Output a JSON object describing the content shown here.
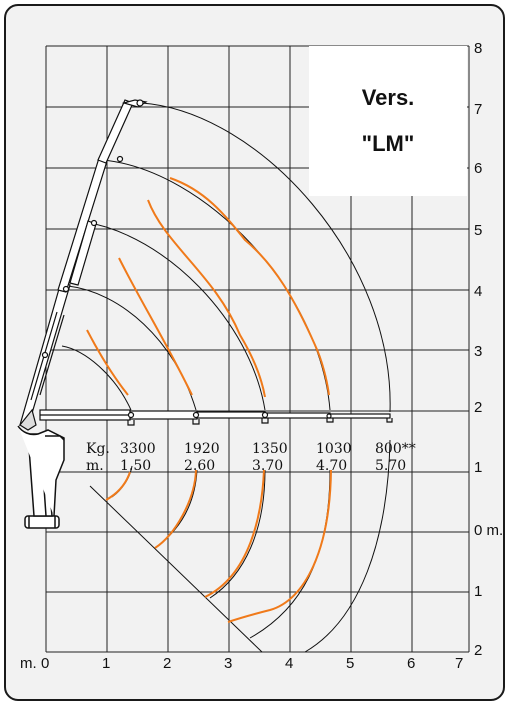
{
  "version": {
    "line1": "Vers.",
    "line2": "\"LM\""
  },
  "axes": {
    "x_label": "m.",
    "x_ticks": [
      "0",
      "1",
      "2",
      "3",
      "4",
      "5",
      "6",
      "7"
    ],
    "y_ticks_up": [
      "1",
      "2",
      "3",
      "4",
      "5",
      "6",
      "7",
      "8"
    ],
    "y_zero": "0 m.",
    "y_ticks_down": [
      "1",
      "2"
    ]
  },
  "load_table": {
    "kg_label": "Kg.",
    "m_label": "m.",
    "loads": [
      "3300",
      "1920",
      "1350",
      "1030",
      "800**"
    ],
    "reaches": [
      "1.50",
      "2.60",
      "3.70",
      "4.70",
      "5.70"
    ]
  },
  "colors": {
    "background": "#f2f2f2",
    "grid": "#222222",
    "load_curve": "#f07a1a",
    "badge": "#ffffff"
  }
}
